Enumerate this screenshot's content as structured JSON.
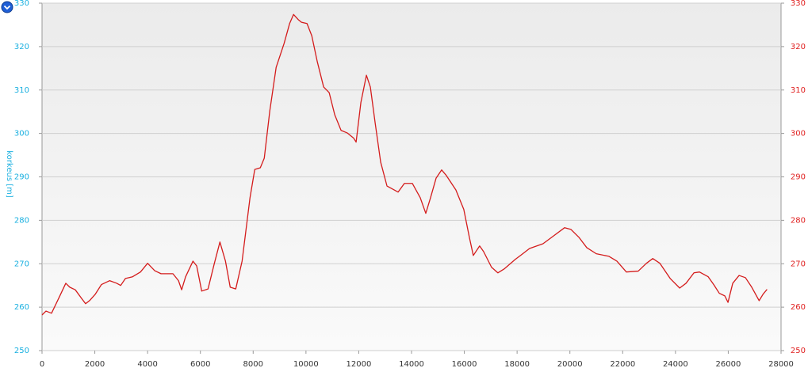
{
  "chart_data": {
    "type": "line",
    "y_label": "korkeus [m]",
    "x": [
      0,
      150,
      360,
      660,
      900,
      1050,
      1260,
      1500,
      1650,
      1800,
      2020,
      2250,
      2560,
      2830,
      2980,
      3160,
      3430,
      3730,
      4000,
      4270,
      4510,
      4960,
      5170,
      5290,
      5440,
      5720,
      5860,
      6050,
      6290,
      6530,
      6740,
      6950,
      7130,
      7340,
      7580,
      7880,
      8060,
      8270,
      8420,
      8630,
      8870,
      9170,
      9380,
      9530,
      9710,
      9830,
      10040,
      10220,
      10430,
      10670,
      10880,
      11090,
      11330,
      11570,
      11810,
      11900,
      12080,
      12290,
      12440,
      12620,
      12830,
      13070,
      13340,
      13490,
      13730,
      14030,
      14330,
      14540,
      14720,
      14930,
      15140,
      15320,
      15680,
      15980,
      16190,
      16340,
      16580,
      16730,
      17030,
      17270,
      17510,
      17930,
      18170,
      18470,
      18980,
      19380,
      19800,
      20040,
      20340,
      20640,
      21000,
      21480,
      21780,
      22140,
      22590,
      22900,
      23140,
      23410,
      23800,
      24160,
      24400,
      24700,
      24910,
      25240,
      25450,
      25660,
      25870,
      25990,
      26170,
      26410,
      26650,
      26890,
      27170,
      27320,
      27470
    ],
    "series": [
      {
        "color": "#d41c1c",
        "values": [
          258.2,
          259.1,
          258.6,
          262.4,
          265.5,
          264.6,
          264.0,
          262.0,
          260.8,
          261.5,
          263.0,
          265.2,
          266.1,
          265.5,
          265.0,
          266.6,
          267.0,
          268.1,
          270.1,
          268.4,
          267.7,
          267.7,
          266.1,
          264.0,
          267.0,
          270.6,
          269.5,
          263.7,
          264.2,
          270.1,
          275.0,
          270.6,
          264.6,
          264.2,
          270.6,
          285.2,
          291.7,
          292.1,
          294.3,
          305.2,
          315.2,
          320.7,
          325.3,
          327.4,
          326.2,
          325.6,
          325.3,
          322.5,
          316.5,
          310.7,
          309.4,
          304.3,
          300.7,
          300.1,
          298.9,
          298.0,
          307.1,
          313.4,
          310.7,
          302.5,
          293.4,
          287.9,
          287.0,
          286.5,
          288.5,
          288.5,
          285.2,
          281.6,
          285.2,
          289.7,
          291.6,
          290.3,
          287.0,
          282.5,
          276.1,
          271.9,
          274.1,
          272.8,
          269.2,
          267.9,
          268.8,
          271.0,
          272.1,
          273.5,
          274.6,
          276.4,
          278.3,
          277.9,
          276.1,
          273.7,
          272.3,
          271.7,
          270.6,
          268.1,
          268.3,
          270.1,
          271.2,
          270.1,
          266.6,
          264.4,
          265.5,
          267.9,
          268.1,
          267.0,
          265.2,
          263.2,
          262.6,
          261.1,
          265.5,
          267.3,
          266.8,
          264.6,
          261.5,
          263.0,
          264.1
        ]
      }
    ],
    "xlim": [
      0,
      28000
    ],
    "xticks": [
      0,
      2000,
      4000,
      6000,
      8000,
      10000,
      12000,
      14000,
      16000,
      18000,
      20000,
      22000,
      24000,
      26000,
      28000
    ],
    "ylim": [
      250,
      330
    ],
    "yticks": [
      250,
      260,
      270,
      280,
      290,
      300,
      310,
      320,
      330
    ],
    "y2lim": [
      250,
      330
    ],
    "y2ticks": [
      250,
      260,
      270,
      280,
      290,
      300,
      310,
      320,
      330
    ],
    "grid": true
  }
}
